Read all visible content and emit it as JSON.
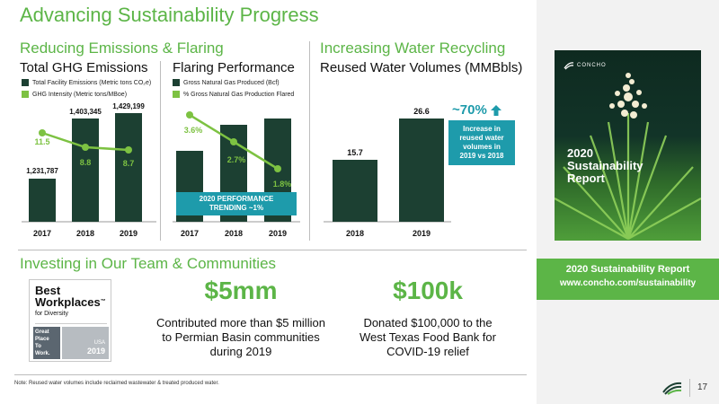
{
  "title": "Advancing Sustainability Progress",
  "emissions": {
    "section": "Reducing Emissions & Flaring",
    "ghg": {
      "title": "Total GHG Emissions",
      "legend": [
        "Total Facility Emissions (Metric tons CO₂e)",
        "GHG Intensity (Metric tons/MBoe)"
      ],
      "bar_labels": [
        "1,231,787",
        "1,403,345",
        "1,429,199"
      ],
      "line_labels": [
        "11.5",
        "8.8",
        "8.7"
      ],
      "years": [
        "2017",
        "2018",
        "2019"
      ]
    },
    "flaring": {
      "title": "Flaring Performance",
      "legend": [
        "Gross Natural Gas Produced (Bcf)",
        "% Gross Natural Gas Production Flared"
      ],
      "line_labels": [
        "3.6%",
        "2.7%",
        "1.8%"
      ],
      "years": [
        "2017",
        "2018",
        "2019"
      ],
      "trend_line1": "2020 PERFORMANCE",
      "trend_line2": "TRENDING ~1%"
    }
  },
  "water": {
    "section": "Increasing Water Recycling",
    "title": "Reused Water Volumes (MMBbls)",
    "bar_labels": [
      "15.7",
      "26.6"
    ],
    "years": [
      "2018",
      "2019"
    ],
    "callout_value": "~70%",
    "callout_text": [
      "Increase in",
      "reused water",
      "volumes in",
      "2019 vs 2018"
    ]
  },
  "team": {
    "section": "Investing in Our Team & Communities",
    "badge": {
      "line1": "Best",
      "line2": "Workplaces",
      "tm": "™",
      "sub": "for Diversity",
      "gptw": [
        "Great",
        "Place",
        "To",
        "Work."
      ],
      "country": "USA",
      "year": "2019"
    },
    "stat1_value": "$5mm",
    "stat1_desc": [
      "Contributed more than $5 million",
      "to Permian Basin communities",
      "during 2019"
    ],
    "stat2_value": "$100k",
    "stat2_desc": [
      "Donated $100,000 to the",
      "West Texas Food Bank for",
      "COVID-19 relief"
    ]
  },
  "report": {
    "brand": "CONCHO",
    "cover_lines": [
      "2020",
      "Sustainability",
      "Report"
    ],
    "bar_title": "2020 Sustainability Report",
    "bar_url": "www.concho.com/sustainability"
  },
  "footnote": "Note: Reused water volumes include reclaimed wastewater & treated produced water.",
  "page_number": "17",
  "colors": {
    "accent_green": "#5cb547",
    "dark_green": "#1c4032",
    "teal": "#1e9bab",
    "line_green": "#7dc242"
  },
  "chart_data": [
    {
      "type": "bar",
      "title": "Total GHG Emissions",
      "categories": [
        "2017",
        "2018",
        "2019"
      ],
      "series": [
        {
          "name": "Total Facility Emissions (Metric tons CO₂e)",
          "values": [
            1231787,
            1403345,
            1429199
          ]
        },
        {
          "name": "GHG Intensity (Metric tons/MBoe)",
          "values": [
            11.5,
            8.8,
            8.7
          ]
        }
      ]
    },
    {
      "type": "bar",
      "title": "Flaring Performance",
      "categories": [
        "2017",
        "2018",
        "2019"
      ],
      "series": [
        {
          "name": "% Gross Natural Gas Production Flared",
          "values": [
            3.6,
            2.7,
            1.8
          ]
        }
      ]
    },
    {
      "type": "bar",
      "title": "Reused Water Volumes (MMBbls)",
      "categories": [
        "2018",
        "2019"
      ],
      "values": [
        15.7,
        26.6
      ]
    }
  ]
}
